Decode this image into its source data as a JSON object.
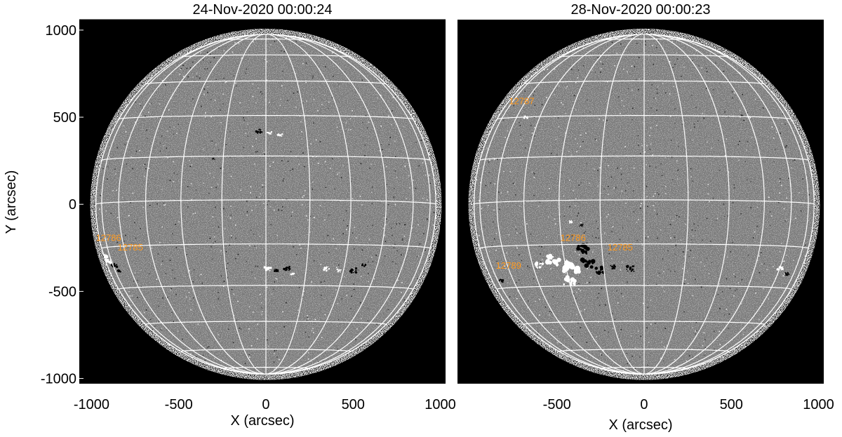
{
  "figure": {
    "ylabel": "Y (arcsec)",
    "panels": [
      {
        "title": "24-Nov-2020 00:00:24",
        "xlabel": "X (arcsec)",
        "xticks": [
          "-1000",
          "-500",
          "0",
          "500",
          "1000"
        ],
        "yticks": [
          "1000",
          "500",
          "0",
          "-500",
          "-1000"
        ],
        "show_yticks": true,
        "regions": [
          {
            "label": "12786",
            "x": -975,
            "y": -210
          },
          {
            "label": "12785",
            "x": -850,
            "y": -265
          }
        ]
      },
      {
        "title": "28-Nov-2020 00:00:23",
        "xlabel": "X (arcsec)",
        "xticks": [
          "-500",
          "0",
          "500",
          "1000"
        ],
        "yticks": [],
        "show_yticks": false,
        "regions": [
          {
            "label": "12787",
            "x": -775,
            "y": 575
          },
          {
            "label": "12786",
            "x": -480,
            "y": -210
          },
          {
            "label": "12785",
            "x": -210,
            "y": -265
          },
          {
            "label": "12789",
            "x": -850,
            "y": -370
          }
        ]
      }
    ],
    "colors": {
      "disk": "#7b7b7b",
      "background": "#000000",
      "grid": "#ffffff",
      "region_label": "#ff9a1f"
    }
  }
}
